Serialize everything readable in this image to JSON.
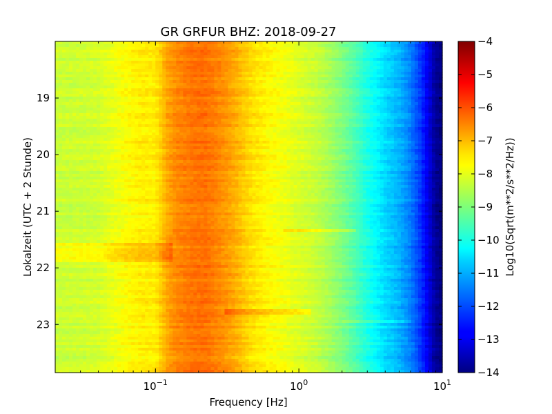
{
  "chart_data": {
    "type": "heatmap",
    "title": "GR GRFUR BHZ: 2018-09-27",
    "xlabel": "Frequency [Hz]",
    "ylabel": "Lokalzeit (UTC + 2 Stunde)",
    "xscale": "log",
    "xlim": [
      0.02,
      10
    ],
    "x_ticks": [
      {
        "value": 0.1,
        "base": "10",
        "exp": "−1"
      },
      {
        "value": 1,
        "base": "10",
        "exp": "0"
      },
      {
        "value": 10,
        "base": "10",
        "exp": "1"
      }
    ],
    "ylim": [
      18.0,
      23.85
    ],
    "y_inverted": true,
    "y_ticks": [
      19,
      20,
      21,
      22,
      23
    ],
    "colorbar": {
      "label": "Log10(Sqrt(m**2/s**2/Hz))",
      "range": [
        -14,
        -4
      ],
      "ticks": [
        -4,
        -5,
        -6,
        -7,
        -8,
        -9,
        -10,
        -11,
        -12,
        -13,
        -14
      ],
      "colormap": "jet"
    },
    "spectrum_profile": {
      "frequency_hz": [
        0.02,
        0.04,
        0.06,
        0.08,
        0.1,
        0.12,
        0.14,
        0.18,
        0.22,
        0.28,
        0.35,
        0.45,
        0.6,
        0.8,
        1.0,
        1.3,
        1.6,
        2.0,
        2.5,
        3.0,
        3.5,
        4.0,
        5.0,
        6.0,
        7.0,
        8.0,
        9.0,
        10.0
      ],
      "log10_amplitude": [
        -8.3,
        -8.2,
        -7.8,
        -7.6,
        -7.6,
        -6.9,
        -6.6,
        -6.4,
        -6.35,
        -6.6,
        -6.9,
        -7.4,
        -7.7,
        -7.9,
        -8.1,
        -8.3,
        -8.6,
        -9.0,
        -9.5,
        -10.0,
        -10.3,
        -10.6,
        -11.0,
        -11.5,
        -12.2,
        -13.0,
        -13.8,
        -14.0
      ]
    },
    "features": [
      {
        "type": "elevated_band",
        "time": [
          21.55,
          21.9
        ],
        "frequency_hz": [
          0.02,
          0.13
        ],
        "delta": 0.5
      },
      {
        "type": "line",
        "time": 21.35,
        "frequency_hz": [
          0.8,
          2.5
        ],
        "delta": 0.5
      },
      {
        "type": "line",
        "time": 22.78,
        "frequency_hz": [
          0.3,
          1.2
        ],
        "delta": 0.5
      },
      {
        "type": "line",
        "time": 22.95,
        "frequency_hz": [
          2.0,
          6.0
        ],
        "delta": 0.4
      }
    ]
  }
}
